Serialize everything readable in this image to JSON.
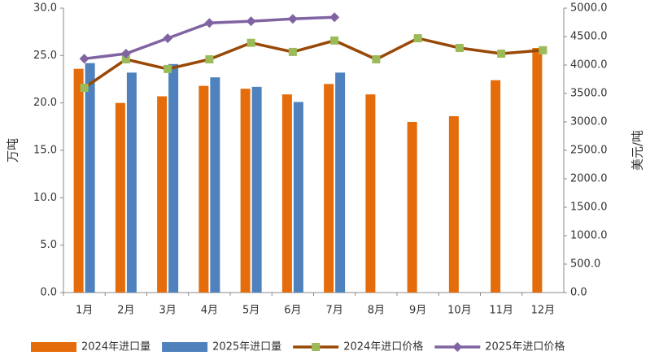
{
  "chart_data": {
    "type": "bar-line",
    "ylabel": "万吨",
    "y2label": "美元/吨",
    "categories": [
      "1月",
      "2月",
      "3月",
      "4月",
      "5月",
      "6月",
      "7月",
      "8月",
      "9月",
      "10月",
      "11月",
      "12月"
    ],
    "ylim": [
      0,
      30
    ],
    "yticks": [
      {
        "value": 0,
        "label": "0.0"
      },
      {
        "value": 5,
        "label": "5.0"
      },
      {
        "value": 10,
        "label": "10.0"
      },
      {
        "value": 15,
        "label": "15.0"
      },
      {
        "value": 20,
        "label": "20.0"
      },
      {
        "value": 25,
        "label": "25.0"
      },
      {
        "value": 30,
        "label": "30.0"
      }
    ],
    "y2lim": [
      0,
      5000
    ],
    "y2ticks": [
      {
        "value": 0,
        "label": "0.0"
      },
      {
        "value": 500,
        "label": "500.0"
      },
      {
        "value": 1000,
        "label": "1000.0"
      },
      {
        "value": 1500,
        "label": "1500.0"
      },
      {
        "value": 2000,
        "label": "2000.0"
      },
      {
        "value": 2500,
        "label": "2500.0"
      },
      {
        "value": 3000,
        "label": "3000.0"
      },
      {
        "value": 3500,
        "label": "3500.0"
      },
      {
        "value": 4000,
        "label": "4000.0"
      },
      {
        "value": 4500,
        "label": "4500.0"
      },
      {
        "value": 5000,
        "label": "5000.0"
      }
    ],
    "grid": false,
    "legend": "bottom",
    "series": [
      {
        "name": "2024年进口量",
        "type": "bar",
        "color": "#e46c0a",
        "values": [
          23.6,
          20.0,
          20.7,
          21.8,
          21.5,
          20.9,
          22.0,
          20.9,
          18.0,
          18.6,
          22.4,
          25.8
        ]
      },
      {
        "name": "2025年进口量",
        "type": "bar",
        "color": "#4f81bd",
        "values": [
          24.2,
          23.2,
          24.1,
          22.7,
          21.7,
          20.1,
          23.2,
          null,
          null,
          null,
          null,
          null
        ]
      },
      {
        "name": "2024年进口价格",
        "type": "line",
        "axis": "y2",
        "color": "#984807",
        "marker": "square",
        "marker_color": "#9bbb59",
        "values": [
          3600,
          4100,
          3930,
          4100,
          4390,
          4230,
          4430,
          4100,
          4470,
          4300,
          4200,
          4260
        ]
      },
      {
        "name": "2025年进口价格",
        "type": "line",
        "axis": "y2",
        "color": "#8064a2",
        "marker": "diamond",
        "marker_color": "#8064a2",
        "values": [
          4110,
          4200,
          4470,
          4740,
          4770,
          4810,
          4840,
          null,
          null,
          null,
          null,
          null
        ]
      }
    ]
  }
}
